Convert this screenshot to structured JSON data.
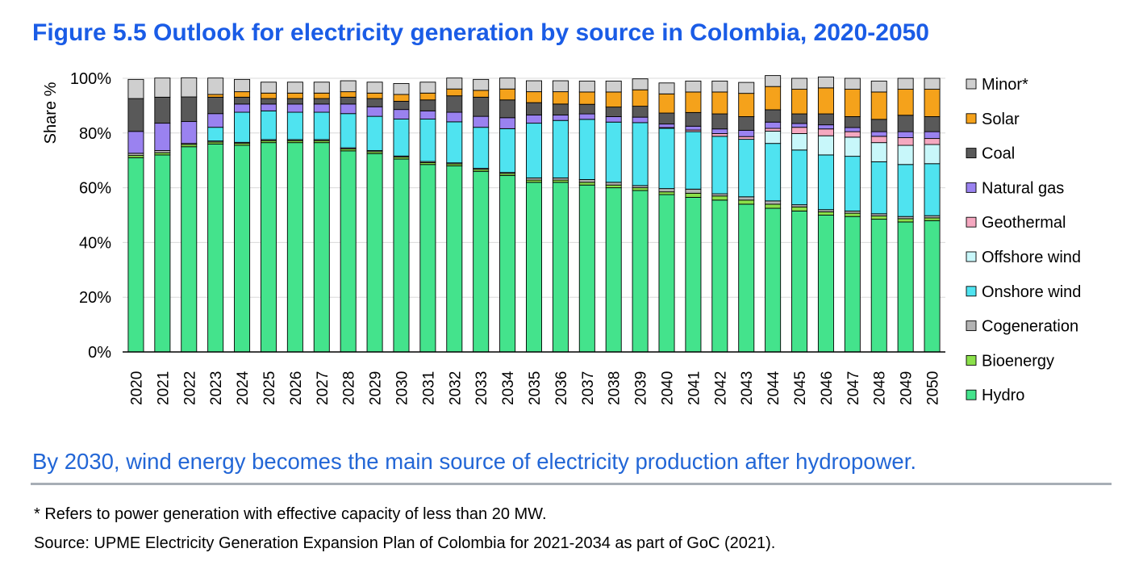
{
  "title": "Figure 5.5 Outlook for electricity generation by source in Colombia, 2020-2050",
  "caption": "By 2030, wind energy becomes the main source of electricity production after hydropower.",
  "footnote": "* Refers to power generation with effective capacity of less than 20 MW.",
  "source": "Source: UPME Electricity Generation Expansion Plan of Colombia for 2021-2034 as part of GoC (2021).",
  "chart_data": {
    "type": "bar",
    "stacked": true,
    "ylabel": "Share %",
    "xlabel": "",
    "ylim": [
      0,
      100
    ],
    "yticks": [
      "0%",
      "20%",
      "40%",
      "60%",
      "80%",
      "100%"
    ],
    "grid": true,
    "legend_position": "right",
    "categories": [
      "2020",
      "2021",
      "2022",
      "2023",
      "2024",
      "2025",
      "2026",
      "2027",
      "2028",
      "2029",
      "2030",
      "2031",
      "2032",
      "2033",
      "2034",
      "2035",
      "2036",
      "2037",
      "2038",
      "2039",
      "2040",
      "2041",
      "2042",
      "2043",
      "2044",
      "2045",
      "2046",
      "2047",
      "2048",
      "2049",
      "2050"
    ],
    "series": [
      {
        "name": "Hydro",
        "color": "#44e38c",
        "values": [
          71,
          72,
          75,
          76,
          75.5,
          76.5,
          76.5,
          76.5,
          73.5,
          72.5,
          70.5,
          68.5,
          68,
          66,
          64.5,
          62,
          62,
          61,
          60,
          59,
          57.5,
          56.5,
          55.5,
          54,
          52.5,
          51.5,
          50,
          49.5,
          48.5,
          47.5,
          48
        ]
      },
      {
        "name": "Bioenergy",
        "color": "#8be04a",
        "values": [
          0.8,
          0.8,
          0.8,
          0.7,
          0.7,
          0.7,
          0.7,
          0.7,
          0.7,
          0.7,
          0.7,
          0.7,
          0.7,
          0.7,
          0.7,
          0.8,
          0.8,
          1,
          1,
          1,
          1,
          1.5,
          1.5,
          1.5,
          1.5,
          1.5,
          1.2,
          1.2,
          1.2,
          1.2,
          1
        ]
      },
      {
        "name": "Cogeneration",
        "color": "#b3b3b3",
        "values": [
          0.8,
          0.8,
          0.4,
          0.4,
          0.4,
          0.4,
          0.4,
          0.4,
          0.4,
          0.4,
          0.4,
          0.4,
          0.4,
          0.4,
          0.4,
          0.8,
          0.8,
          1,
          1,
          0.8,
          1.2,
          1.5,
          0.8,
          1.2,
          1.2,
          0.8,
          0.8,
          0.8,
          0.8,
          0.8,
          0.8
        ]
      },
      {
        "name": "Onshore wind",
        "color": "#4fe3f0",
        "values": [
          0,
          0,
          0,
          5,
          11,
          10.5,
          10,
          10,
          12.5,
          12.5,
          13.5,
          15.5,
          15,
          15,
          16,
          20,
          21,
          22,
          22,
          23,
          22,
          21,
          21,
          21,
          21,
          20,
          20,
          20,
          19,
          19,
          19
        ]
      },
      {
        "name": "Offshore wind",
        "color": "#c8f7fa",
        "values": [
          0,
          0,
          0,
          0,
          0,
          0,
          0,
          0,
          0,
          0,
          0,
          0,
          0,
          0,
          0,
          0,
          0,
          0,
          0,
          0,
          0,
          0,
          0,
          0,
          4.5,
          6,
          7,
          7,
          7,
          7,
          7
        ]
      },
      {
        "name": "Geothermal",
        "color": "#f5a8c0",
        "values": [
          0,
          0,
          0,
          0,
          0,
          0,
          0,
          0,
          0,
          0,
          0,
          0,
          0,
          0,
          0,
          0,
          0,
          0,
          0,
          0,
          0.3,
          0.6,
          1,
          1,
          1,
          2.3,
          2.5,
          2,
          2.3,
          2.8,
          2.2
        ]
      },
      {
        "name": "Natural gas",
        "color": "#9a82f0",
        "values": [
          8,
          10,
          8,
          5,
          3,
          2.5,
          3,
          3,
          3.5,
          3.5,
          3.5,
          3,
          3.5,
          4,
          4,
          3,
          2,
          2,
          2,
          2,
          1.3,
          1.4,
          1.7,
          2.3,
          2.3,
          1.4,
          1.5,
          1.5,
          1.7,
          2.2,
          2.5
        ]
      },
      {
        "name": "Coal",
        "color": "#595959",
        "values": [
          12,
          9.5,
          9,
          6,
          2.5,
          2,
          2,
          2,
          2.5,
          3,
          3,
          4,
          6,
          7,
          6.5,
          4.5,
          4,
          3.5,
          3.5,
          4,
          4,
          5,
          5.5,
          5,
          4.5,
          3.5,
          4,
          4,
          4.5,
          6,
          5.5
        ]
      },
      {
        "name": "Solar",
        "color": "#f5a21b",
        "values": [
          0,
          0,
          0,
          1,
          2,
          2,
          2,
          2,
          2,
          2,
          2.5,
          2.5,
          2.5,
          2.5,
          4,
          4,
          4.5,
          4.5,
          5.5,
          6,
          7,
          7.5,
          8,
          8.5,
          8.5,
          9,
          9.5,
          10,
          10,
          9.5,
          10
        ]
      },
      {
        "name": "Minor*",
        "color": "#cfcfcf",
        "values": [
          7,
          7,
          7,
          6,
          4.5,
          4,
          4,
          4,
          4,
          4,
          4,
          4,
          4,
          4,
          4,
          4,
          4,
          4,
          4,
          4,
          4,
          4,
          4,
          4,
          4,
          4,
          4,
          4,
          4,
          4,
          4
        ]
      }
    ]
  }
}
